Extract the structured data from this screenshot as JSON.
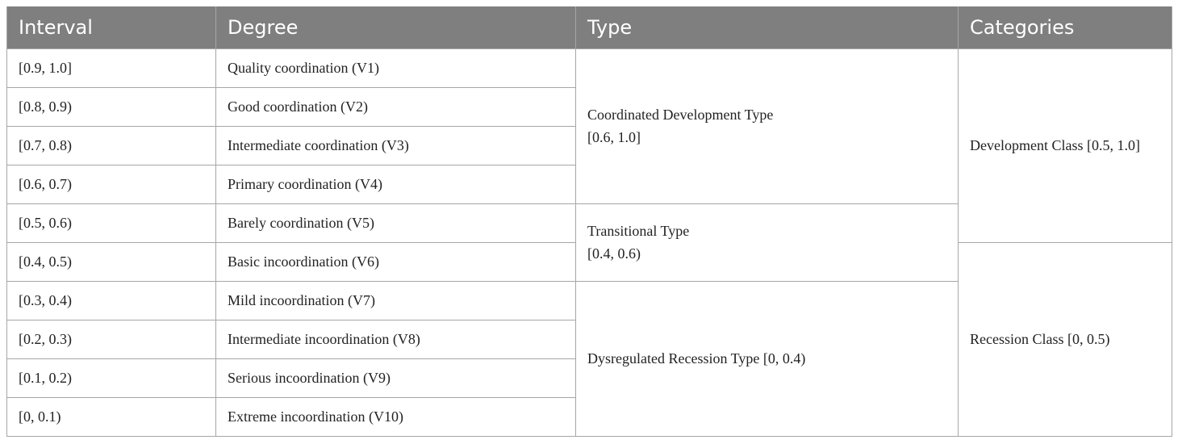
{
  "table": {
    "headers": [
      "Interval",
      "Degree",
      "Type",
      "Categories"
    ],
    "rows": [
      {
        "interval": "[0.9, 1.0]",
        "degree": "Quality coordination (V1)"
      },
      {
        "interval": "[0.8, 0.9)",
        "degree": "Good coordination (V2)"
      },
      {
        "interval": "[0.7, 0.8)",
        "degree": "Intermediate coordination (V3)"
      },
      {
        "interval": "[0.6, 0.7)",
        "degree": "Primary coordination (V4)"
      },
      {
        "interval": "[0.5, 0.6)",
        "degree": "Barely coordination (V5)"
      },
      {
        "interval": "[0.4, 0.5)",
        "degree": "Basic incoordination (V6)"
      },
      {
        "interval": "[0.3, 0.4)",
        "degree": "Mild incoordination (V7)"
      },
      {
        "interval": "[0.2, 0.3)",
        "degree": "Intermediate incoordination (V8)"
      },
      {
        "interval": "[0.1, 0.2)",
        "degree": "Serious incoordination (V9)"
      },
      {
        "interval": "[0, 0.1)",
        "degree": "Extreme incoordination (V10)"
      }
    ],
    "types": [
      {
        "name": "Coordinated Development Type",
        "range": "[0.6, 1.0]"
      },
      {
        "name": "Transitional Type",
        "range": "[0.4, 0.6)"
      },
      {
        "label": "Dysregulated Recession Type [0, 0.4)"
      }
    ],
    "categories": [
      {
        "label": "Development Class [0.5, 1.0]"
      },
      {
        "label": "Recession Class [0, 0.5)"
      }
    ]
  }
}
